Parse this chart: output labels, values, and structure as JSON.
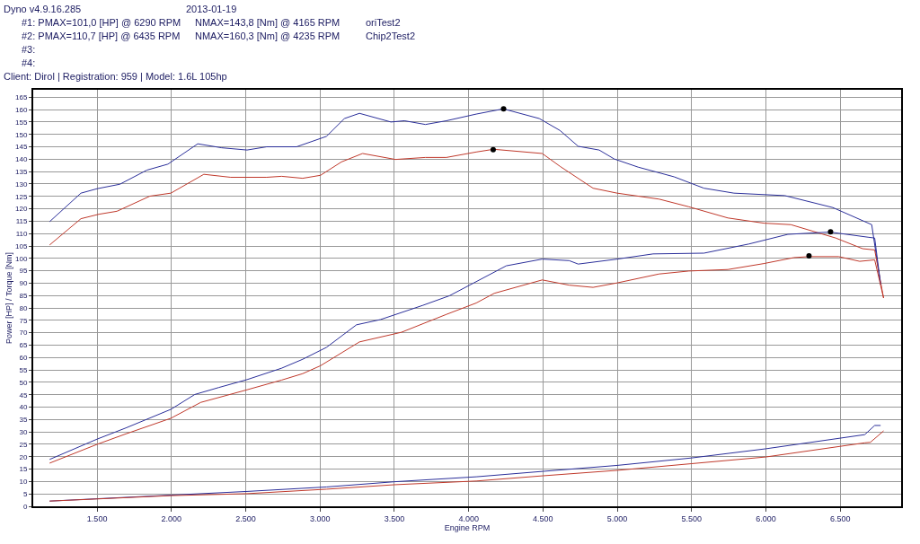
{
  "chart_data": {
    "type": "line",
    "xlabel": "Engine RPM",
    "ylabel": "Power [HP] / Torque [Nm]",
    "annotations": [
      "Dyno v4.9.16.285",
      "2013-01-19",
      "#1: PMAX=101,0 [HP] @ 6290 RPM",
      "NMAX=143,8 [Nm] @ 4165 RPM",
      "oriTest2",
      "#2: PMAX=110,7 [HP] @ 6435 RPM",
      "NMAX=160,3 [Nm] @ 4235 RPM",
      "Chip2Test2",
      "#3:",
      "#4:",
      "Client: Dirol | Registration: 959 | Model: 1.6L 105hp"
    ],
    "xlim": [
      1070,
      6910
    ],
    "ylim": [
      0,
      168
    ],
    "xticks": [
      {
        "value": 1500,
        "label": "1.500"
      },
      {
        "value": 2000,
        "label": "2.000"
      },
      {
        "value": 2500,
        "label": "2.500"
      },
      {
        "value": 3000,
        "label": "3.000"
      },
      {
        "value": 3500,
        "label": "3.500"
      },
      {
        "value": 4000,
        "label": "4.000"
      },
      {
        "value": 4500,
        "label": "4.500"
      },
      {
        "value": 5000,
        "label": "5.000"
      },
      {
        "value": 5500,
        "label": "5.500"
      },
      {
        "value": 6000,
        "label": "6.000"
      },
      {
        "value": 6500,
        "label": "6.500"
      }
    ],
    "yticks": [
      0,
      5,
      10,
      15,
      20,
      25,
      30,
      35,
      40,
      45,
      50,
      55,
      60,
      65,
      70,
      75,
      80,
      85,
      90,
      95,
      100,
      105,
      110,
      115,
      120,
      125,
      130,
      135,
      140,
      145,
      150,
      155,
      160,
      165
    ],
    "grid": true,
    "marker": "none",
    "line_style": "solid",
    "series": [
      {
        "color": "#2b2f9a",
        "x": [
          1180,
          1391,
          1500,
          1653,
          1835,
          1976,
          2177,
          2338,
          2509,
          2641,
          2842,
          3043,
          3164,
          3265,
          3477,
          3568,
          3709,
          3850,
          4051,
          4233,
          4475,
          4614,
          4737,
          4878,
          4979,
          5140,
          5382,
          5583,
          5785,
          6128,
          6450,
          6712,
          6772
        ],
        "values": [
          114.8,
          126.3,
          128.1,
          129.9,
          135.6,
          138,
          146.2,
          144.6,
          143.7,
          145,
          145,
          149.2,
          156.4,
          158.5,
          155,
          155.5,
          154,
          155.5,
          158.2,
          160.3,
          156.4,
          151.6,
          145.2,
          143.7,
          140.1,
          136.8,
          132.9,
          128.3,
          126.3,
          125.3,
          120.5,
          113.6,
          89.5
        ]
      },
      {
        "color": "#c0392b",
        "x": [
          1180,
          1391,
          1512,
          1633,
          1855,
          1996,
          2218,
          2399,
          2641,
          2741,
          2883,
          3003,
          3144,
          3286,
          3507,
          3709,
          3850,
          4051,
          4168,
          4495,
          4615,
          4837,
          4999,
          5281,
          5482,
          5744,
          5986,
          6168,
          6470,
          6651,
          6732,
          6792
        ],
        "values": [
          105.4,
          116,
          117.8,
          119,
          125.1,
          126.3,
          133.9,
          132.7,
          132.7,
          133.1,
          132.3,
          133.5,
          138.9,
          142.3,
          139.9,
          140.7,
          140.7,
          142.9,
          144,
          142.3,
          137.1,
          128.3,
          126.3,
          123.9,
          120.8,
          116.3,
          114.2,
          113.6,
          108.2,
          103.9,
          103.4,
          84
        ]
      },
      {
        "color": "#2b2f9a",
        "x": [
          1180,
          1500,
          1693,
          1996,
          2157,
          2318,
          2509,
          2741,
          2883,
          3043,
          3245,
          3406,
          3689,
          3870,
          4253,
          4495,
          4676,
          4737,
          4999,
          5241,
          5583,
          5886,
          6148,
          6430,
          6692,
          6732,
          6772
        ],
        "values": [
          18.9,
          27.1,
          31.6,
          39.1,
          45.1,
          47.9,
          51.1,
          55.7,
          59.3,
          64.1,
          73.2,
          75.3,
          81,
          84.9,
          97,
          99.7,
          99.1,
          97.7,
          99.7,
          101.8,
          102.1,
          105.8,
          109.7,
          110.6,
          108.5,
          108.2,
          89.5
        ]
      },
      {
        "color": "#c0392b",
        "x": [
          1180,
          1500,
          1693,
          1996,
          2197,
          2509,
          2741,
          2883,
          3003,
          3265,
          3548,
          3850,
          4051,
          4172,
          4495,
          4676,
          4837,
          4999,
          5281,
          5482,
          5744,
          5986,
          6188,
          6289,
          6490,
          6631,
          6732,
          6792
        ],
        "values": [
          17.4,
          25,
          29.2,
          35.5,
          41.9,
          47,
          50.9,
          53.5,
          56.7,
          66.3,
          70.2,
          77.4,
          82,
          85.9,
          91.3,
          89.2,
          88.3,
          90.1,
          93.7,
          94.9,
          95.5,
          97.9,
          100.3,
          100.7,
          100.7,
          98.8,
          99.4,
          84
        ]
      },
      {
        "color": "#2b2f9a",
        "x": [
          1180,
          1996,
          2509,
          3043,
          3500,
          4051,
          4500,
          5000,
          5500,
          6000,
          6665,
          6732,
          6772
        ],
        "values": [
          2.1,
          4.5,
          6,
          7.8,
          9.9,
          11.9,
          14.1,
          16.5,
          19.5,
          23.2,
          28.9,
          32.6,
          32.6
        ]
      },
      {
        "color": "#c0392b",
        "x": [
          1180,
          1996,
          2509,
          3043,
          3500,
          4051,
          4500,
          5000,
          5500,
          6000,
          6665,
          6703,
          6792
        ],
        "values": [
          2.1,
          4.3,
          5.1,
          6.9,
          8.7,
          10.2,
          12.3,
          14.5,
          17.2,
          19.9,
          25.6,
          25.8,
          30.4
        ]
      },
      {
        "type": "scatter",
        "marker": "circle",
        "color": "#000000",
        "x": [
          4235,
          4165,
          6435,
          6290
        ],
        "values": [
          160.3,
          143.8,
          110.7,
          101
        ]
      }
    ]
  }
}
